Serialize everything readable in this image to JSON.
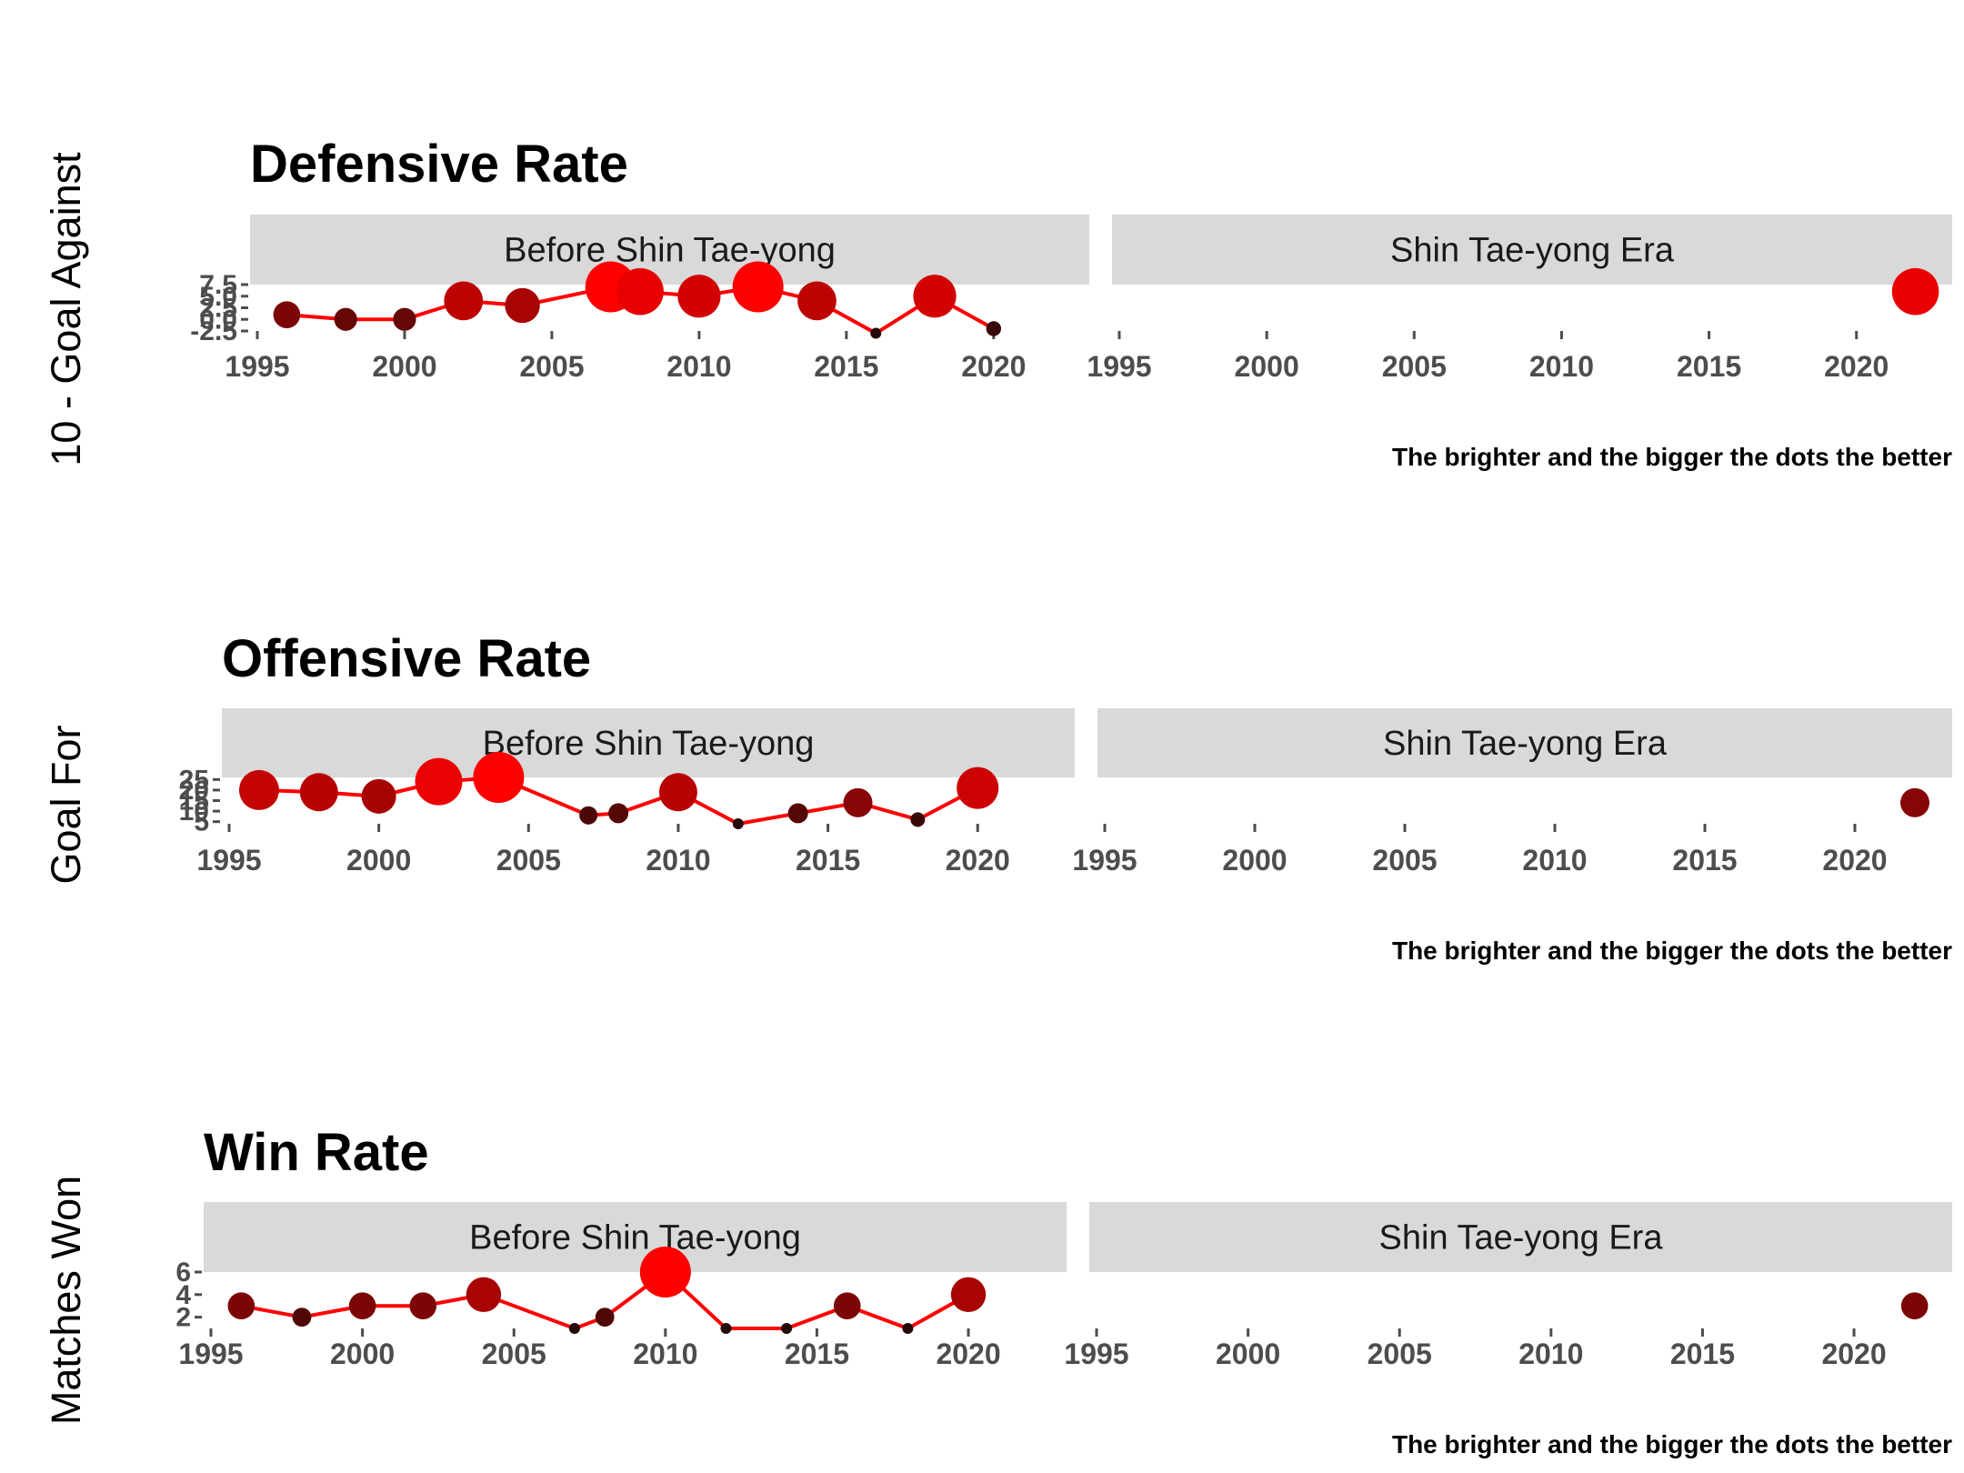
{
  "chart_data": [
    {
      "type": "line",
      "title": "Defensive Rate",
      "ylabel": "10 - Goal Against",
      "caption": "The brighter and the bigger the dots the better",
      "facets": [
        "Before Shin Tae-yong",
        "Shin Tae-yong Era"
      ],
      "xlim": [
        1995,
        2023
      ],
      "xticks": [
        1995,
        2000,
        2005,
        2010,
        2015,
        2020
      ],
      "ylim": [
        -2.5,
        7.5
      ],
      "yticks": [
        -2.5,
        0.0,
        2.5,
        5.0,
        7.5
      ],
      "ytick_labels": [
        "-2.5",
        "0.0",
        "2.5",
        "5.0",
        "7.5"
      ],
      "line_color": "#ff0000",
      "series": [
        {
          "facet": "Before Shin Tae-yong",
          "x": [
            1996,
            1998,
            2000,
            2002,
            2004,
            2007,
            2008,
            2010,
            2012,
            2014,
            2016,
            2018,
            2020
          ],
          "y": [
            1,
            0,
            0,
            4,
            3,
            7,
            6,
            5,
            7,
            4,
            -3,
            5,
            -2
          ]
        },
        {
          "facet": "Shin Tae-yong Era",
          "x": [
            2022
          ],
          "y": [
            6
          ]
        }
      ]
    },
    {
      "type": "line",
      "title": "Offensive Rate",
      "ylabel": "Goal For",
      "caption": "The brighter and the bigger the dots the better",
      "facets": [
        "Before Shin Tae-yong",
        "Shin Tae-yong Era"
      ],
      "xlim": [
        1995,
        2023
      ],
      "xticks": [
        1995,
        2000,
        2005,
        2010,
        2015,
        2020
      ],
      "ylim": [
        4,
        26
      ],
      "yticks": [
        5,
        10,
        15,
        20,
        25
      ],
      "ytick_labels": [
        "5",
        "10",
        "15",
        "20",
        "25"
      ],
      "line_color": "#ff0000",
      "series": [
        {
          "facet": "Before Shin Tae-yong",
          "x": [
            1996,
            1998,
            2000,
            2002,
            2004,
            2007,
            2008,
            2010,
            2012,
            2014,
            2016,
            2018,
            2020
          ],
          "y": [
            20,
            19,
            17,
            24,
            26,
            8,
            9,
            19,
            4,
            9,
            14,
            6,
            21
          ]
        },
        {
          "facet": "Shin Tae-yong Era",
          "x": [
            2022
          ],
          "y": [
            14
          ]
        }
      ]
    },
    {
      "type": "line",
      "title": "Win Rate",
      "ylabel": "Matches Won",
      "caption": "The brighter and the bigger the dots the better",
      "facets": [
        "Before Shin Tae-yong",
        "Shin Tae-yong Era"
      ],
      "xlim": [
        1995,
        2023
      ],
      "xticks": [
        1995,
        2000,
        2005,
        2010,
        2015,
        2020
      ],
      "ylim": [
        1,
        6
      ],
      "yticks": [
        2,
        4,
        6
      ],
      "ytick_labels": [
        "2",
        "4",
        "6"
      ],
      "line_color": "#ff0000",
      "series": [
        {
          "facet": "Before Shin Tae-yong",
          "x": [
            1996,
            1998,
            2000,
            2002,
            2004,
            2007,
            2008,
            2010,
            2012,
            2014,
            2016,
            2018,
            2020
          ],
          "y": [
            3,
            2,
            3,
            3,
            4,
            1,
            2,
            6,
            1,
            1,
            3,
            1,
            4
          ]
        },
        {
          "facet": "Shin Tae-yong Era",
          "x": [
            2022
          ],
          "y": [
            3
          ]
        }
      ]
    }
  ]
}
